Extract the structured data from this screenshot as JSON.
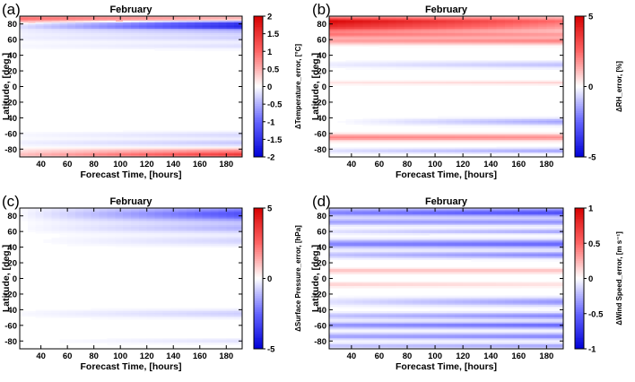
{
  "chart_data": [
    {
      "type": "heatmap",
      "panel_label": "(a)",
      "title": "February",
      "xlabel": "Forecast Time, [hours]",
      "ylabel": "Latitude, [deg.]",
      "xlim": [
        24,
        192
      ],
      "ylim": [
        -90,
        90
      ],
      "xticks": [
        "40",
        "60",
        "80",
        "100",
        "120",
        "140",
        "160",
        "180"
      ],
      "yticks": [
        "80",
        "60",
        "40",
        "20",
        "0",
        "-20",
        "-40",
        "-60",
        "-80"
      ],
      "colorbar_label": "ΔTemperature_error, [°C]",
      "colorbar_range": [
        -2,
        2
      ],
      "colorbar_ticks": [
        "2",
        "1.5",
        "1",
        "0.5",
        "0",
        "-0.5",
        "-1",
        "-1.5",
        "-2"
      ],
      "bands": [
        {
          "lat": 88,
          "w": 3,
          "v0": 0.6,
          "v1": 0.3
        },
        {
          "lat": 84,
          "w": 4,
          "v0": 0.7,
          "v1": 0.4
        },
        {
          "lat": 81,
          "w": 3,
          "v0": -0.3,
          "v1": -1.6
        },
        {
          "lat": 76,
          "w": 3,
          "v0": -0.2,
          "v1": -1.5
        },
        {
          "lat": 70,
          "w": 4,
          "v0": -0.1,
          "v1": -0.4
        },
        {
          "lat": 62,
          "w": 4,
          "v0": -0.1,
          "v1": -0.3
        },
        {
          "lat": 52,
          "w": 4,
          "v0": -0.05,
          "v1": -0.2
        },
        {
          "lat": -62,
          "w": 4,
          "v0": -0.05,
          "v1": -0.25
        },
        {
          "lat": -72,
          "w": 4,
          "v0": -0.1,
          "v1": -0.35
        },
        {
          "lat": -82,
          "w": 3,
          "v0": 0.2,
          "v1": 0.7
        },
        {
          "lat": -87,
          "w": 3,
          "v0": 0.4,
          "v1": 1.4
        }
      ]
    },
    {
      "type": "heatmap",
      "panel_label": "(b)",
      "title": "February",
      "xlabel": "Forecast Time, [hours]",
      "ylabel": "Latitude, [deg.]",
      "xlim": [
        24,
        192
      ],
      "ylim": [
        -90,
        90
      ],
      "xticks": [
        "40",
        "60",
        "80",
        "100",
        "120",
        "140",
        "160",
        "180"
      ],
      "yticks": [
        "80",
        "60",
        "40",
        "20",
        "0",
        "-20",
        "-40",
        "-60",
        "-80"
      ],
      "colorbar_label": "ΔRH_error, [%]",
      "colorbar_range": [
        -5,
        5
      ],
      "colorbar_ticks": [
        "5",
        "0",
        "-5"
      ],
      "bands": [
        {
          "lat": 84,
          "w": 5,
          "v0": 4.0,
          "v1": 2.0
        },
        {
          "lat": 76,
          "w": 6,
          "v0": 3.5,
          "v1": 1.5
        },
        {
          "lat": 66,
          "w": 4,
          "v0": 2.0,
          "v1": 1.5
        },
        {
          "lat": 58,
          "w": 4,
          "v0": 1.5,
          "v1": 2.0
        },
        {
          "lat": 28,
          "w": 4,
          "v0": -0.3,
          "v1": -1.0
        },
        {
          "lat": 5,
          "w": 2,
          "v0": 0.5,
          "v1": 0.8
        },
        {
          "lat": -45,
          "w": 4,
          "v0": 0.0,
          "v1": -1.5
        },
        {
          "lat": -65,
          "w": 4,
          "v0": 2.0,
          "v1": 1.8
        },
        {
          "lat": -82,
          "w": 3,
          "v0": -0.5,
          "v1": -1.5
        }
      ]
    },
    {
      "type": "heatmap",
      "panel_label": "(c)",
      "title": "February",
      "xlabel": "Forecast Time, [hours]",
      "ylabel": "Latitude, [deg.]",
      "xlim": [
        24,
        192
      ],
      "ylim": [
        -90,
        90
      ],
      "xticks": [
        "40",
        "60",
        "80",
        "100",
        "120",
        "140",
        "160",
        "180"
      ],
      "yticks": [
        "80",
        "60",
        "40",
        "20",
        "0",
        "-20",
        "-40",
        "-60",
        "-80"
      ],
      "colorbar_label": "ΔSurface Pressure_error, [hPa]",
      "colorbar_range": [
        -5,
        5
      ],
      "colorbar_ticks": [
        "5",
        "0",
        "-5"
      ],
      "bands": [
        {
          "lat": 82,
          "w": 9,
          "v0": -0.1,
          "v1": -3.0
        },
        {
          "lat": 64,
          "w": 6,
          "v0": -0.05,
          "v1": -1.2
        },
        {
          "lat": 48,
          "w": 6,
          "v0": 0.0,
          "v1": -0.7
        },
        {
          "lat": -45,
          "w": 5,
          "v0": -0.1,
          "v1": -0.8
        },
        {
          "lat": -80,
          "w": 3,
          "v0": 0.0,
          "v1": -0.5
        }
      ]
    },
    {
      "type": "heatmap",
      "panel_label": "(d)",
      "title": "February",
      "xlabel": "Forecast Time, [hours]",
      "ylabel": "Latitude, [deg.]",
      "xlim": [
        24,
        192
      ],
      "ylim": [
        -90,
        90
      ],
      "xticks": [
        "40",
        "60",
        "80",
        "100",
        "120",
        "140",
        "160",
        "180"
      ],
      "yticks": [
        "80",
        "60",
        "40",
        "20",
        "0",
        "-20",
        "-40",
        "-60",
        "-80"
      ],
      "colorbar_label": "ΔWind Speed_error, [m s⁻¹]",
      "colorbar_range": [
        -1,
        1
      ],
      "colorbar_ticks": [
        "1",
        "0.5",
        "0",
        "-0.5",
        "-1"
      ],
      "bands": [
        {
          "lat": 84,
          "w": 5,
          "v0": -0.4,
          "v1": -0.6
        },
        {
          "lat": 72,
          "w": 4,
          "v0": -0.3,
          "v1": -0.35
        },
        {
          "lat": 60,
          "w": 3,
          "v0": -0.1,
          "v1": -0.3
        },
        {
          "lat": 44,
          "w": 5,
          "v0": -0.4,
          "v1": -0.5
        },
        {
          "lat": 30,
          "w": 4,
          "v0": -0.2,
          "v1": -0.4
        },
        {
          "lat": 10,
          "w": 3,
          "v0": 0.2,
          "v1": 0.2
        },
        {
          "lat": -8,
          "w": 3,
          "v0": 0.15,
          "v1": 0.1
        },
        {
          "lat": -30,
          "w": 5,
          "v0": -0.1,
          "v1": -0.35
        },
        {
          "lat": -48,
          "w": 4,
          "v0": -0.2,
          "v1": -0.4
        },
        {
          "lat": -60,
          "w": 4,
          "v0": -0.35,
          "v1": -0.5
        },
        {
          "lat": -74,
          "w": 4,
          "v0": -0.3,
          "v1": -0.4
        },
        {
          "lat": -86,
          "w": 3,
          "v0": -0.2,
          "v1": -0.3
        }
      ]
    }
  ]
}
